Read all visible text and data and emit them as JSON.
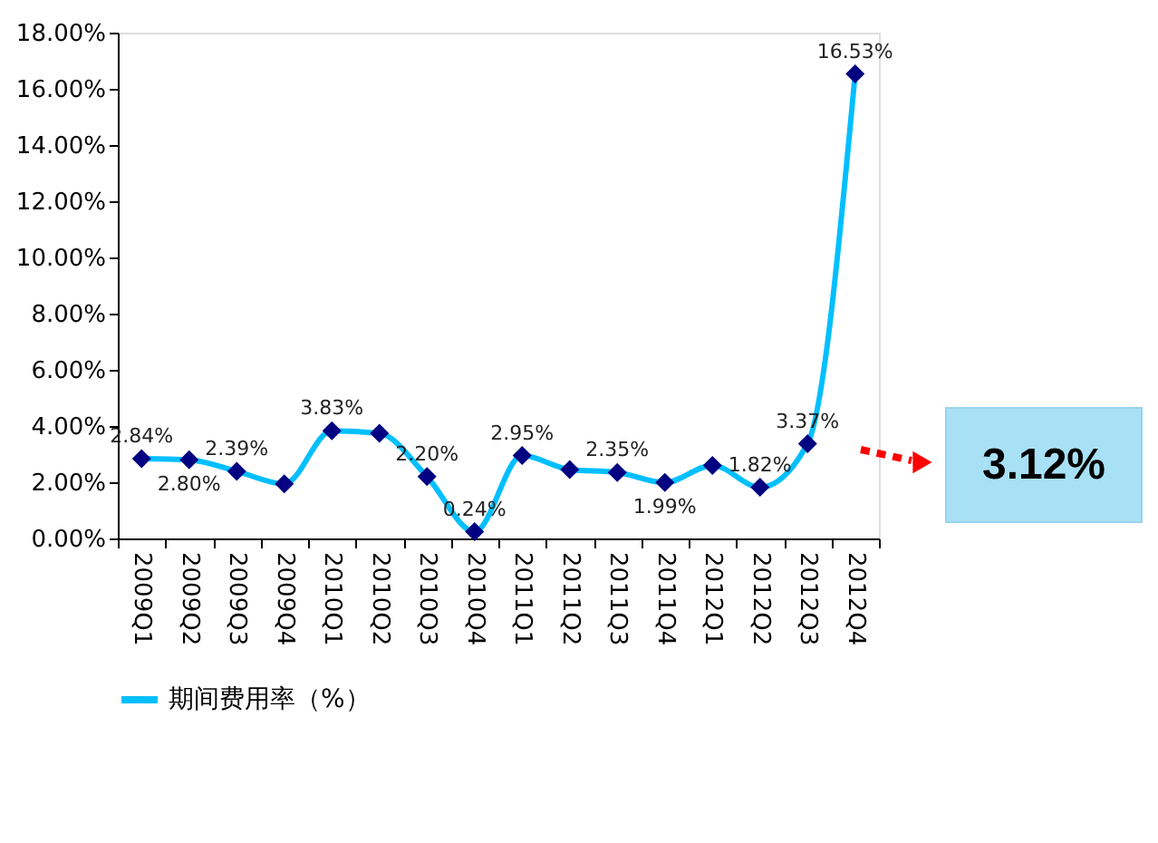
{
  "chart_data": {
    "type": "line",
    "categories": [
      "2009Q1",
      "2009Q2",
      "2009Q3",
      "2009Q4",
      "2010Q1",
      "2010Q2",
      "2010Q3",
      "2010Q4",
      "2011Q1",
      "2011Q2",
      "2011Q3",
      "2011Q4",
      "2012Q1",
      "2012Q2",
      "2012Q3",
      "2012Q4"
    ],
    "series": [
      {
        "name": "期间费用率（%）",
        "color": "#00bfff",
        "values": [
          2.84,
          2.8,
          2.39,
          1.94,
          3.83,
          3.74,
          2.2,
          0.24,
          2.95,
          2.45,
          2.35,
          1.99,
          2.6,
          1.82,
          3.37,
          16.53
        ],
        "value_labels": [
          "2.84%",
          "2.80%",
          "2.39%",
          null,
          "3.83%",
          null,
          "2.20%",
          "0.24%",
          "2.95%",
          null,
          "2.35%",
          "1.99%",
          null,
          "1.82%",
          "3.37%",
          "16.53%"
        ]
      }
    ],
    "ylim": [
      0,
      18
    ],
    "yticks": [
      {
        "value": 0,
        "label": "0.00%"
      },
      {
        "value": 2,
        "label": "2.00%"
      },
      {
        "value": 4,
        "label": "4.00%"
      },
      {
        "value": 6,
        "label": "6.00%"
      },
      {
        "value": 8,
        "label": "8.00%"
      },
      {
        "value": 10,
        "label": "10.00%"
      },
      {
        "value": 12,
        "label": "12.00%"
      },
      {
        "value": 14,
        "label": "14.00%"
      },
      {
        "value": 16,
        "label": "16.00%"
      },
      {
        "value": 18,
        "label": "18.00%"
      }
    ],
    "annotations": [
      "3.12%"
    ],
    "grid": false,
    "legend": "bottom",
    "marker": "diamond",
    "line_style": "solid"
  }
}
